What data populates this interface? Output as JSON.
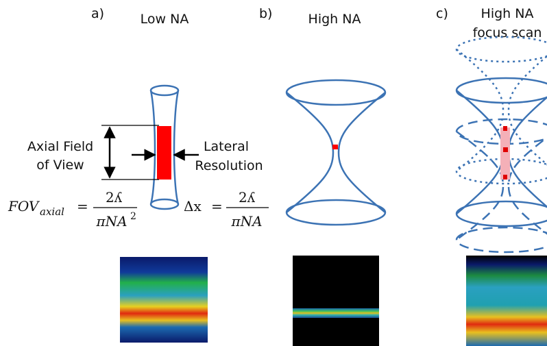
{
  "panels": [
    {
      "label": "a)",
      "title": [
        "Low NA"
      ]
    },
    {
      "label": "b)",
      "title": [
        "High NA"
      ]
    },
    {
      "label": "c)",
      "title": [
        "High NA",
        "focus scan"
      ]
    }
  ],
  "annotations": {
    "axial_fov": [
      "Axial Field",
      "of View"
    ],
    "lateral": [
      "Lateral",
      "Resolution"
    ]
  },
  "formulas": {
    "fov": {
      "lhs": "FOV",
      "sub": "axial",
      "eq": "=",
      "num": "2ʎ",
      "den": "πNA",
      "sup": "2"
    },
    "dx": {
      "lhs": "Δx",
      "eq": "=",
      "num": "2ʎ",
      "den": "πNA"
    }
  }
}
